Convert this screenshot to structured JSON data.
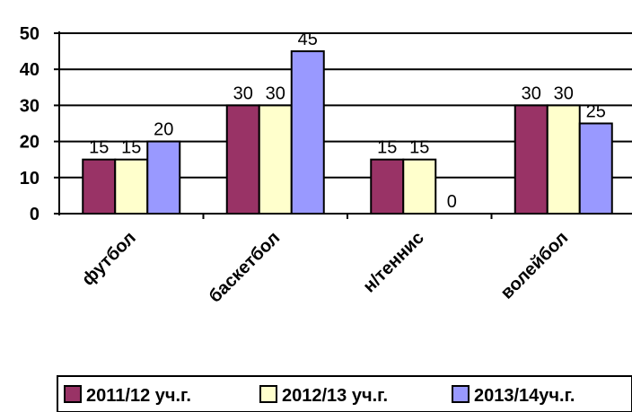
{
  "chart_data": {
    "type": "bar",
    "categories": [
      "футбол",
      "баскетбол",
      "н/теннис",
      "волейбол"
    ],
    "series": [
      {
        "name": "2011/12 уч.г.",
        "values": [
          15,
          30,
          15,
          30
        ],
        "color": "#993366"
      },
      {
        "name": "2012/13 уч.г.",
        "values": [
          15,
          30,
          15,
          30
        ],
        "color": "#FFFFCC"
      },
      {
        "name": "2013/14уч.г.",
        "values": [
          20,
          45,
          0,
          25
        ],
        "color": "#9999FF"
      }
    ],
    "ylim": [
      0,
      50
    ],
    "yticks": [
      "0",
      "10",
      "20",
      "30",
      "40",
      "50"
    ],
    "grid": true,
    "legend": "bottom",
    "data_labels": true
  }
}
